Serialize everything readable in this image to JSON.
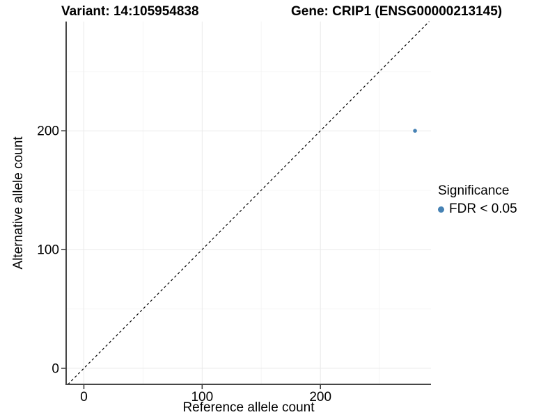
{
  "chart_data": {
    "type": "scatter",
    "title_left": "Variant: 14:105954838",
    "title_right": "Gene: CRIP1 (ENSG00000213145)",
    "xlabel": "Reference allele count",
    "ylabel": "Alternative allele count",
    "xlim": [
      -15,
      293.5
    ],
    "ylim": [
      -13.5,
      292
    ],
    "x_ticks": [
      0,
      100,
      200
    ],
    "y_ticks": [
      0,
      100,
      200
    ],
    "x_minor_gridlines": [
      50,
      150,
      250
    ],
    "y_minor_gridlines": [
      50,
      150,
      250
    ],
    "grid": true,
    "identity_line": {
      "equation": "y = x",
      "style": "dashed",
      "color": "#000000"
    },
    "series": [
      {
        "name": "FDR < 0.05",
        "color": "#4682B4",
        "point_radius": 2.8,
        "points": [
          {
            "x": 280,
            "y": 200
          }
        ]
      }
    ],
    "legend": {
      "title": "Significance",
      "position": "right",
      "entries": [
        {
          "label": "FDR < 0.05",
          "color": "#4682B4"
        }
      ]
    },
    "colors": {
      "axis_line": "#464646",
      "tick_mark": "#333333",
      "grid_major": "#e9e9e9",
      "grid_minor": "#f5f5f5",
      "text": "#000000"
    }
  }
}
